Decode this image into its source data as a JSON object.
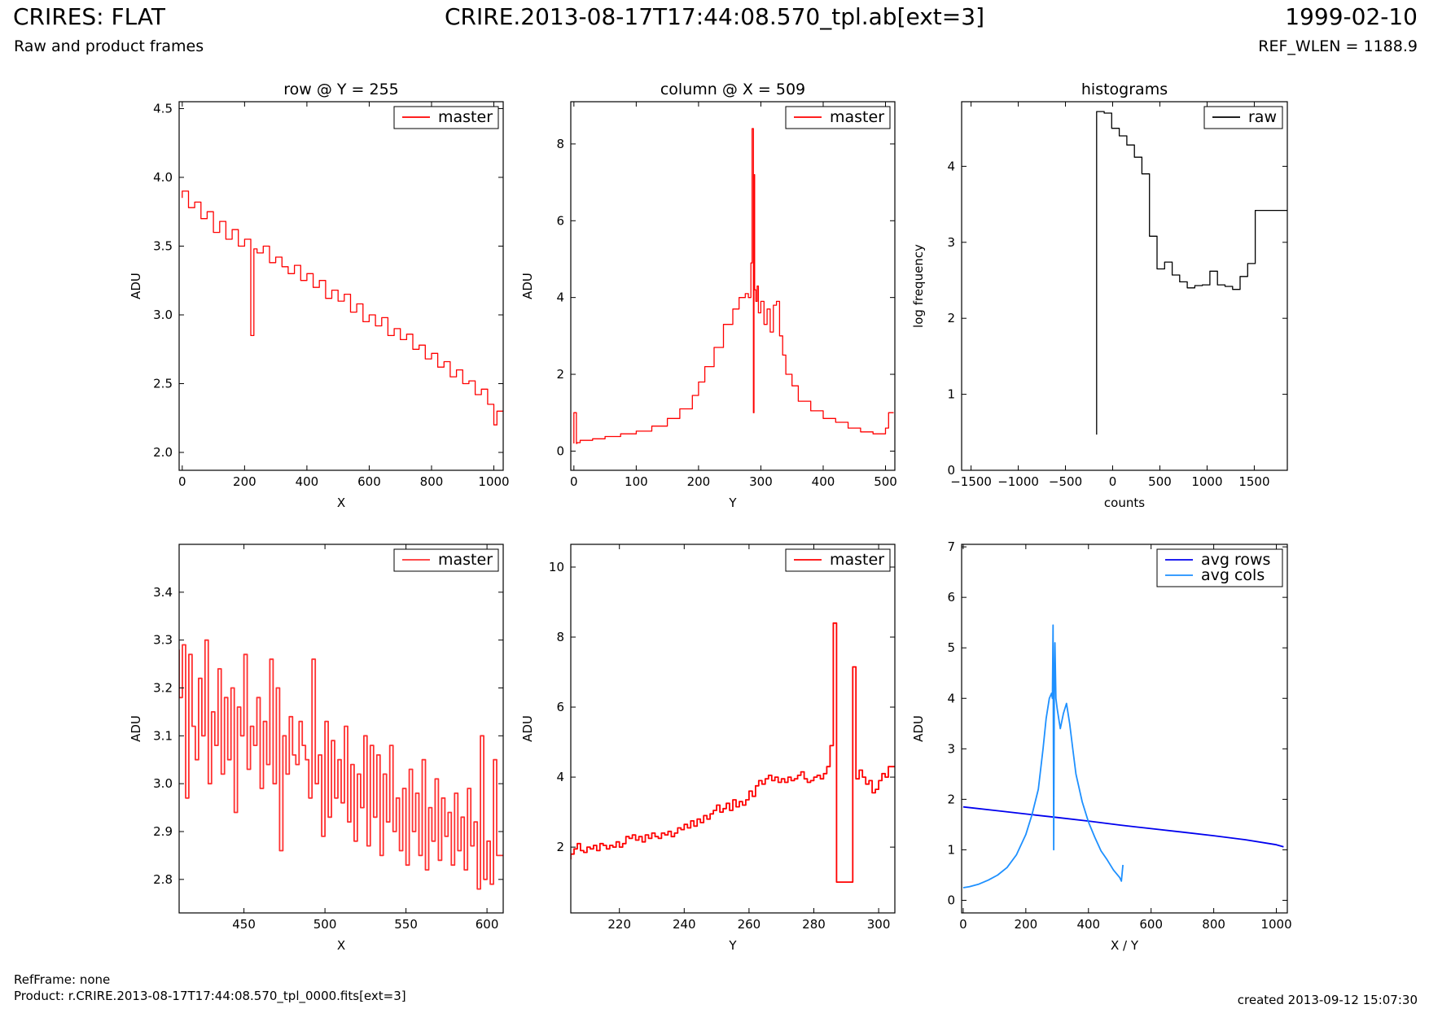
{
  "header": {
    "title_left": "CRIRES: FLAT",
    "subtitle_left": "Raw and product frames",
    "title_center": "CRIRE.2013-08-17T17:44:08.570_tpl.ab[ext=3]",
    "title_right": "1999-02-10",
    "subtitle_right": "REF_WLEN = 1188.9"
  },
  "footer": {
    "refframe": "RefFrame: none",
    "product": "Product: r.CRIRE.2013-08-17T17:44:08.570_tpl_0000.fits[ext=3]",
    "created": "created 2013-09-12 15:07:30"
  },
  "chart_data": [
    {
      "id": "row-full",
      "type": "line",
      "title": "row @ Y = 255",
      "xlabel": "X",
      "ylabel": "ADU",
      "xlim": [
        -10,
        1030
      ],
      "ylim": [
        1.87,
        4.55
      ],
      "xticks": [
        0,
        200,
        400,
        600,
        800,
        1000
      ],
      "xticklabels": [
        "0",
        "200",
        "400",
        "600",
        "800",
        "1000"
      ],
      "yticks": [
        2.0,
        2.5,
        3.0,
        3.5,
        4.0,
        4.5
      ],
      "yticklabels": [
        "2.0",
        "2.5",
        "3.0",
        "3.5",
        "4.0",
        "4.5"
      ],
      "legend": "top-right",
      "series": [
        {
          "name": "master",
          "color": "#ff0000",
          "step": true,
          "x": [
            0,
            20,
            40,
            60,
            80,
            100,
            120,
            140,
            160,
            180,
            200,
            220,
            230,
            240,
            260,
            280,
            300,
            320,
            340,
            360,
            380,
            400,
            420,
            440,
            460,
            480,
            500,
            520,
            540,
            560,
            580,
            600,
            620,
            640,
            660,
            680,
            700,
            720,
            740,
            760,
            780,
            800,
            820,
            840,
            860,
            880,
            900,
            920,
            940,
            960,
            980,
            1000,
            1010,
            1020
          ],
          "y": [
            3.85,
            3.9,
            3.78,
            3.82,
            3.7,
            3.75,
            3.6,
            3.68,
            3.55,
            3.62,
            3.5,
            3.55,
            2.85,
            3.48,
            3.45,
            3.5,
            3.38,
            3.42,
            3.35,
            3.3,
            3.36,
            3.25,
            3.3,
            3.2,
            3.25,
            3.12,
            3.18,
            3.1,
            3.15,
            3.02,
            3.08,
            2.95,
            3.0,
            2.92,
            2.98,
            2.85,
            2.9,
            2.82,
            2.86,
            2.75,
            2.78,
            2.68,
            2.72,
            2.62,
            2.66,
            2.55,
            2.6,
            2.5,
            2.52,
            2.42,
            2.46,
            2.35,
            2.2,
            2.3
          ]
        }
      ]
    },
    {
      "id": "column-full",
      "type": "line",
      "title": "column @ X = 509",
      "xlabel": "Y",
      "ylabel": "ADU",
      "xlim": [
        -5,
        515
      ],
      "ylim": [
        -0.5,
        9.1
      ],
      "xticks": [
        0,
        100,
        200,
        300,
        400,
        500
      ],
      "xticklabels": [
        "0",
        "100",
        "200",
        "300",
        "400",
        "500"
      ],
      "yticks": [
        0,
        2,
        4,
        6,
        8
      ],
      "yticklabels": [
        "0",
        "2",
        "4",
        "6",
        "8"
      ],
      "legend": "top-right",
      "series": [
        {
          "name": "master",
          "color": "#ff0000",
          "step": true,
          "x": [
            0,
            4,
            5,
            10,
            30,
            50,
            75,
            100,
            125,
            150,
            170,
            190,
            200,
            210,
            225,
            240,
            255,
            265,
            275,
            280,
            284,
            286,
            288,
            289,
            290,
            292,
            294,
            296,
            300,
            305,
            310,
            315,
            320,
            325,
            330,
            335,
            340,
            350,
            360,
            380,
            400,
            420,
            440,
            460,
            480,
            500,
            505,
            507,
            510
          ],
          "y": [
            0.2,
            1.0,
            0.2,
            0.22,
            0.28,
            0.32,
            0.38,
            0.45,
            0.52,
            0.65,
            0.85,
            1.1,
            1.45,
            1.8,
            2.2,
            2.7,
            3.3,
            3.7,
            4.0,
            4.1,
            4.0,
            4.9,
            8.4,
            1.0,
            7.2,
            4.2,
            3.9,
            4.3,
            3.6,
            3.9,
            3.3,
            3.7,
            3.1,
            3.8,
            3.9,
            3.0,
            2.5,
            2.0,
            1.7,
            1.3,
            1.05,
            0.85,
            0.75,
            0.6,
            0.5,
            0.45,
            0.6,
            1.0,
            1.0
          ]
        }
      ]
    },
    {
      "id": "histograms",
      "type": "line",
      "title": "histograms",
      "xlabel": "counts",
      "ylabel": "log frequency",
      "xlim": [
        -1600,
        1850
      ],
      "ylim": [
        0,
        4.85
      ],
      "xticks": [
        -1500,
        -1000,
        -500,
        0,
        500,
        1000,
        1500
      ],
      "xticklabels": [
        "−1500",
        "−1000",
        "−500",
        "0",
        "500",
        "1000",
        "1500"
      ],
      "yticks": [
        0,
        1,
        2,
        3,
        4
      ],
      "yticklabels": [
        "0",
        "1",
        "2",
        "3",
        "4"
      ],
      "legend": "top-right",
      "series": [
        {
          "name": "raw",
          "color": "#000000",
          "step": true,
          "x": [
            -170,
            -90,
            -10,
            70,
            150,
            230,
            310,
            390,
            470,
            550,
            630,
            710,
            790,
            870,
            950,
            1030,
            1110,
            1190,
            1270,
            1350,
            1430,
            1510,
            1590,
            1670,
            1750,
            1850
          ],
          "y": [
            0.47,
            4.72,
            4.7,
            4.5,
            4.4,
            4.28,
            4.12,
            3.9,
            3.08,
            2.65,
            2.74,
            2.57,
            2.48,
            2.4,
            2.43,
            2.44,
            2.62,
            2.44,
            2.42,
            2.38,
            2.55,
            2.72,
            3.42,
            3.42,
            3.42,
            3.42
          ]
        }
      ]
    },
    {
      "id": "row-zoom",
      "type": "line",
      "xlabel": "X",
      "ylabel": "ADU",
      "xlim": [
        410,
        610
      ],
      "ylim": [
        2.73,
        3.5
      ],
      "xticks": [
        450,
        500,
        550,
        600
      ],
      "xticklabels": [
        "450",
        "500",
        "550",
        "600"
      ],
      "yticks": [
        2.8,
        2.9,
        3.0,
        3.1,
        3.2,
        3.3,
        3.4
      ],
      "yticklabels": [
        "2.8",
        "2.9",
        "3.0",
        "3.1",
        "3.2",
        "3.3",
        "3.4"
      ],
      "legend": "top-right",
      "series": [
        {
          "name": "master",
          "color": "#ff3030",
          "step": true,
          "x": [
            410,
            412,
            414,
            416,
            418,
            420,
            422,
            424,
            426,
            428,
            430,
            432,
            434,
            436,
            438,
            440,
            442,
            444,
            446,
            448,
            450,
            452,
            454,
            456,
            458,
            460,
            462,
            464,
            466,
            468,
            470,
            472,
            474,
            476,
            478,
            480,
            482,
            484,
            486,
            488,
            490,
            492,
            494,
            496,
            498,
            500,
            502,
            504,
            506,
            508,
            510,
            512,
            514,
            516,
            518,
            520,
            522,
            524,
            526,
            528,
            530,
            532,
            534,
            536,
            538,
            540,
            542,
            544,
            546,
            548,
            550,
            552,
            554,
            556,
            558,
            560,
            562,
            564,
            566,
            568,
            570,
            572,
            574,
            576,
            578,
            580,
            582,
            584,
            586,
            588,
            590,
            592,
            594,
            596,
            598,
            600,
            602,
            604,
            606,
            608
          ],
          "y": [
            3.28,
            3.18,
            3.29,
            2.97,
            3.27,
            3.12,
            3.05,
            3.22,
            3.1,
            3.3,
            3.0,
            3.15,
            3.08,
            3.24,
            3.02,
            3.18,
            3.05,
            3.2,
            2.94,
            3.16,
            3.1,
            3.27,
            3.03,
            3.12,
            3.08,
            3.18,
            2.99,
            3.13,
            3.04,
            3.26,
            3.0,
            3.2,
            2.86,
            3.1,
            3.02,
            3.14,
            3.06,
            3.04,
            3.13,
            3.08,
            3.05,
            2.97,
            3.26,
            3.0,
            3.06,
            2.89,
            3.13,
            2.93,
            3.09,
            2.97,
            3.05,
            2.96,
            3.12,
            2.92,
            3.04,
            2.88,
            3.02,
            2.95,
            3.1,
            2.87,
            3.08,
            2.93,
            3.06,
            2.85,
            3.02,
            2.92,
            3.08,
            2.9,
            2.97,
            2.86,
            2.99,
            2.83,
            3.03,
            2.9,
            2.98,
            2.85,
            3.05,
            2.82,
            2.95,
            2.88,
            3.01,
            2.84,
            2.97,
            2.89,
            2.94,
            2.83,
            2.98,
            2.86,
            2.93,
            2.82,
            2.99,
            2.87,
            2.92,
            2.78,
            3.1,
            2.8,
            2.88,
            2.79,
            3.05,
            2.85
          ]
        }
      ]
    },
    {
      "id": "column-zoom",
      "type": "line",
      "xlabel": "Y",
      "ylabel": "ADU",
      "xlim": [
        205,
        305
      ],
      "ylim": [
        0.12,
        10.65
      ],
      "xticks": [
        220,
        240,
        260,
        280,
        300
      ],
      "xticklabels": [
        "220",
        "240",
        "260",
        "280",
        "300"
      ],
      "yticks": [
        2,
        4,
        6,
        8,
        10
      ],
      "yticklabels": [
        "2",
        "4",
        "6",
        "8",
        "10"
      ],
      "legend": "top-right",
      "series": [
        {
          "name": "master",
          "color": "#ff0000",
          "step": true,
          "x": [
            205,
            206,
            207,
            208,
            209,
            210,
            211,
            212,
            213,
            214,
            215,
            216,
            217,
            218,
            219,
            220,
            221,
            222,
            223,
            224,
            225,
            226,
            227,
            228,
            229,
            230,
            231,
            232,
            233,
            234,
            235,
            236,
            237,
            238,
            239,
            240,
            241,
            242,
            243,
            244,
            245,
            246,
            247,
            248,
            249,
            250,
            251,
            252,
            253,
            254,
            255,
            256,
            257,
            258,
            259,
            260,
            261,
            262,
            263,
            264,
            265,
            266,
            267,
            268,
            269,
            270,
            271,
            272,
            273,
            274,
            275,
            276,
            277,
            278,
            279,
            280,
            281,
            282,
            283,
            284,
            285,
            286,
            287,
            288,
            289,
            290,
            291,
            292,
            293,
            294,
            295,
            296,
            297,
            298,
            299,
            300,
            301,
            302,
            303,
            304
          ],
          "y": [
            1.65,
            1.8,
            1.95,
            2.1,
            1.9,
            1.85,
            2.0,
            1.95,
            2.05,
            1.9,
            2.1,
            2.05,
            1.95,
            2.05,
            2.0,
            2.15,
            2.0,
            2.1,
            2.3,
            2.25,
            2.35,
            2.2,
            2.3,
            2.15,
            2.35,
            2.25,
            2.4,
            2.3,
            2.25,
            2.4,
            2.35,
            2.45,
            2.3,
            2.4,
            2.55,
            2.5,
            2.65,
            2.55,
            2.75,
            2.6,
            2.8,
            2.7,
            2.9,
            2.8,
            2.95,
            3.05,
            3.2,
            3.0,
            3.1,
            3.25,
            3.05,
            3.35,
            3.15,
            3.3,
            3.2,
            3.35,
            3.6,
            3.45,
            3.75,
            3.9,
            3.8,
            3.95,
            4.05,
            3.9,
            4.0,
            3.85,
            3.95,
            3.85,
            4.0,
            3.9,
            3.95,
            4.05,
            4.15,
            3.95,
            3.85,
            3.9,
            4.0,
            4.05,
            3.95,
            4.1,
            4.3,
            4.9,
            8.4,
            1.0,
            1.0,
            1.0,
            1.0,
            1.0,
            7.15,
            3.95,
            4.2,
            4.0,
            3.8,
            3.9,
            3.55,
            3.65,
            3.9,
            4.1,
            4.0,
            4.3
          ]
        }
      ]
    },
    {
      "id": "averages",
      "type": "line",
      "xlabel": "X / Y",
      "ylabel": "ADU",
      "xlim": [
        -5,
        1035
      ],
      "ylim": [
        -0.25,
        7.05
      ],
      "xticks": [
        0,
        200,
        400,
        600,
        800,
        1000
      ],
      "xticklabels": [
        "0",
        "200",
        "400",
        "600",
        "800",
        "1000"
      ],
      "yticks": [
        0,
        1,
        2,
        3,
        4,
        5,
        6,
        7
      ],
      "yticklabels": [
        "0",
        "1",
        "2",
        "3",
        "4",
        "5",
        "6",
        "7"
      ],
      "legend": "top-right",
      "series": [
        {
          "name": "avg rows",
          "color": "#0000ee",
          "step": false,
          "x": [
            0,
            100,
            200,
            300,
            400,
            500,
            600,
            700,
            800,
            900,
            1000,
            1023
          ],
          "y": [
            1.85,
            1.78,
            1.71,
            1.64,
            1.57,
            1.49,
            1.42,
            1.35,
            1.28,
            1.2,
            1.1,
            1.06
          ]
        },
        {
          "name": "avg cols",
          "color": "#1e90ff",
          "step": false,
          "x": [
            0,
            20,
            50,
            80,
            110,
            140,
            170,
            200,
            220,
            240,
            255,
            265,
            275,
            282,
            285,
            287,
            289,
            291,
            293,
            296,
            300,
            310,
            320,
            330,
            340,
            350,
            360,
            380,
            400,
            420,
            440,
            460,
            480,
            500,
            505,
            510
          ],
          "y": [
            0.25,
            0.27,
            0.32,
            0.4,
            0.5,
            0.65,
            0.9,
            1.3,
            1.7,
            2.2,
            3.0,
            3.6,
            4.0,
            4.1,
            4.0,
            5.45,
            1.0,
            4.2,
            5.1,
            4.0,
            3.8,
            3.4,
            3.7,
            3.9,
            3.5,
            3.0,
            2.5,
            1.95,
            1.55,
            1.25,
            0.98,
            0.8,
            0.6,
            0.45,
            0.38,
            0.7
          ]
        }
      ]
    }
  ]
}
